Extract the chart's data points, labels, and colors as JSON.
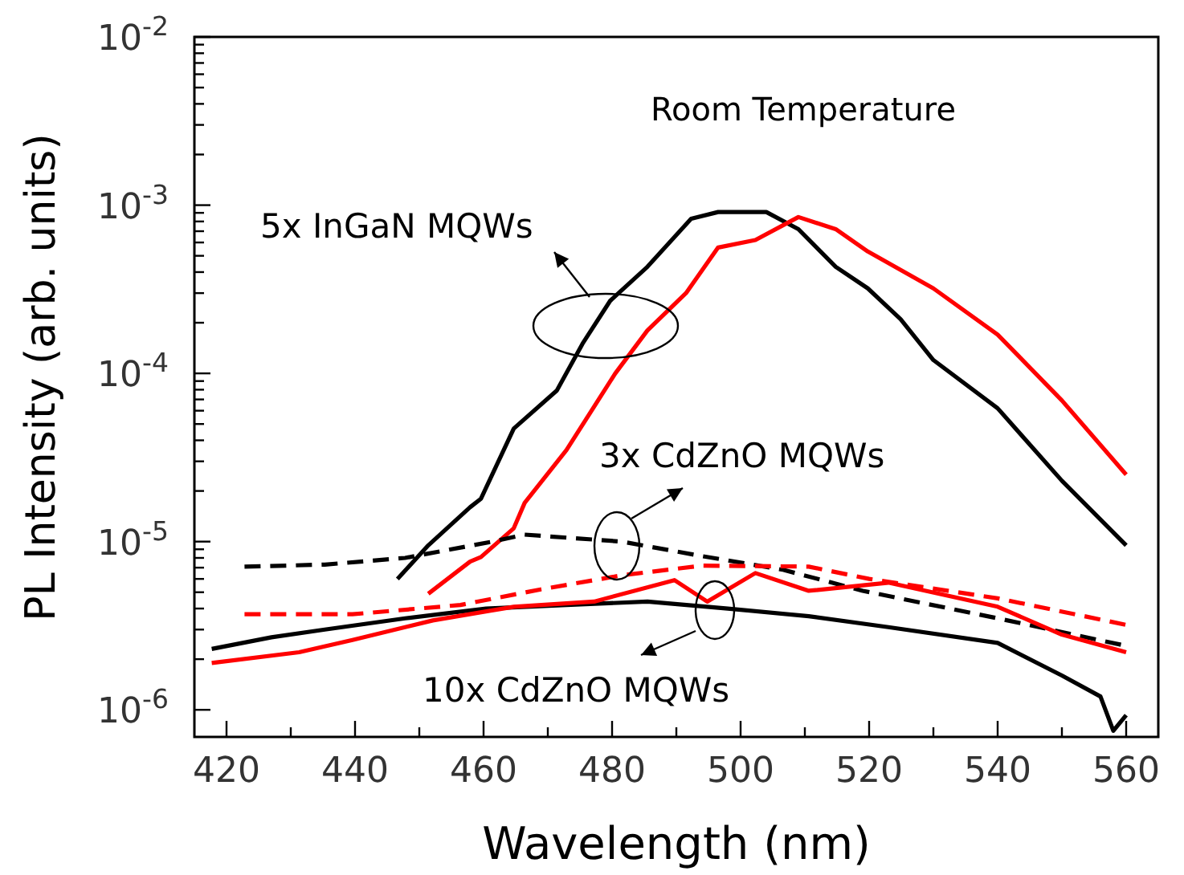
{
  "chart_data": {
    "type": "line",
    "xlabel": "Wavelength (nm)",
    "ylabel": "PL Intensity (arb. units)",
    "log": "y",
    "marker": "none",
    "xlim": [
      415,
      565
    ],
    "ylim": [
      6.9e-07,
      0.01
    ],
    "xticks": [
      {
        "value": 420,
        "label": "420"
      },
      {
        "value": 430,
        "label": null
      },
      {
        "value": 440,
        "label": "440"
      },
      {
        "value": 450,
        "label": null
      },
      {
        "value": 460,
        "label": "460"
      },
      {
        "value": 470,
        "label": null
      },
      {
        "value": 480,
        "label": "480"
      },
      {
        "value": 490,
        "label": null
      },
      {
        "value": 500,
        "label": "500"
      },
      {
        "value": 510,
        "label": null
      },
      {
        "value": 520,
        "label": "520"
      },
      {
        "value": 530,
        "label": null
      },
      {
        "value": 540,
        "label": "540"
      },
      {
        "value": 550,
        "label": null
      },
      {
        "value": 560,
        "label": "560"
      }
    ],
    "yticks": [
      {
        "value": 1e-06,
        "label": "10$^{-6}$"
      },
      {
        "value": 2e-06,
        "label": null
      },
      {
        "value": 3e-06,
        "label": null
      },
      {
        "value": 4e-06,
        "label": null
      },
      {
        "value": 5e-06,
        "label": null
      },
      {
        "value": 6e-06,
        "label": null
      },
      {
        "value": 7e-06,
        "label": null
      },
      {
        "value": 8e-06,
        "label": null
      },
      {
        "value": 9e-06,
        "label": null
      },
      {
        "value": 1e-05,
        "label": "10$^{-5}$"
      },
      {
        "value": 2e-05,
        "label": null
      },
      {
        "value": 3e-05,
        "label": null
      },
      {
        "value": 4e-05,
        "label": null
      },
      {
        "value": 5e-05,
        "label": null
      },
      {
        "value": 6e-05,
        "label": null
      },
      {
        "value": 7e-05,
        "label": null
      },
      {
        "value": 8e-05,
        "label": null
      },
      {
        "value": 9e-05,
        "label": null
      },
      {
        "value": 0.0001,
        "label": "10$^{-4}$"
      },
      {
        "value": 0.0002,
        "label": null
      },
      {
        "value": 0.0003,
        "label": null
      },
      {
        "value": 0.0004,
        "label": null
      },
      {
        "value": 0.0005,
        "label": null
      },
      {
        "value": 0.0006,
        "label": null
      },
      {
        "value": 0.0007,
        "label": null
      },
      {
        "value": 0.0008,
        "label": null
      },
      {
        "value": 0.0009,
        "label": null
      },
      {
        "value": 0.001,
        "label": "10$^{-3}$"
      },
      {
        "value": 0.002,
        "label": null
      },
      {
        "value": 0.003,
        "label": null
      },
      {
        "value": 0.004,
        "label": null
      },
      {
        "value": 0.005,
        "label": null
      },
      {
        "value": 0.006,
        "label": null
      },
      {
        "value": 0.007,
        "label": null
      },
      {
        "value": 0.008,
        "label": null
      },
      {
        "value": 0.009,
        "label": null
      },
      {
        "value": 0.01,
        "label": "10$^{-2}$"
      }
    ],
    "annotations": [
      "Room Temperature",
      "5x InGaN MQWs",
      "3x CdZnO MQWs",
      "10x CdZnO MQWs"
    ],
    "series": [
      {
        "color": "#000000",
        "line_style": "solid",
        "x": [
          446.6,
          451.4,
          457.9,
          459.6,
          464.7,
          471.4,
          475.4,
          479.7,
          485.5,
          492.3,
          496.5,
          504,
          509,
          514.8,
          519.8,
          524.9,
          530,
          540,
          550,
          560
        ],
        "values": [
          6e-06,
          9.5e-06,
          1.6e-05,
          1.8e-05,
          4.7e-05,
          7.9e-05,
          0.00015,
          0.00027,
          0.00043,
          0.00083,
          0.00091,
          0.00091,
          0.00072,
          0.00043,
          0.00032,
          0.00021,
          0.00012,
          6.2e-05,
          2.3e-05,
          9.5e-06
        ]
      },
      {
        "color": "#ff0000",
        "line_style": "solid",
        "x": [
          451.4,
          457.9,
          459.6,
          464.7,
          466.4,
          472.9,
          480.5,
          485.5,
          491.5,
          496.5,
          502.3,
          509,
          514.8,
          519.8,
          530,
          540,
          550,
          560
        ],
        "values": [
          4.9e-06,
          7.6e-06,
          8.1e-06,
          1.2e-05,
          1.7e-05,
          3.5e-05,
          0.0001,
          0.00018,
          0.0003,
          0.00056,
          0.00062,
          0.00085,
          0.00072,
          0.00053,
          0.00032,
          0.00017,
          6.9e-05,
          2.5e-05
        ]
      },
      {
        "color": "#000000",
        "line_style": "dashed",
        "x": [
          422.8,
          435.3,
          447.8,
          461.4,
          466.4,
          481.5,
          494,
          506.6,
          519,
          540,
          560
        ],
        "values": [
          7.1e-06,
          7.3e-06,
          8e-06,
          1e-05,
          1.1e-05,
          1e-05,
          8.2e-06,
          6.8e-06,
          5.1e-06,
          3.5e-06,
          2.4e-06
        ]
      },
      {
        "color": "#ff0000",
        "line_style": "dashed",
        "x": [
          422.8,
          439.6,
          456.4,
          468.9,
          481.5,
          494,
          510.6,
          520,
          540,
          560
        ],
        "values": [
          3.7e-06,
          3.7e-06,
          4.2e-06,
          5.2e-06,
          6.3e-06,
          7.2e-06,
          7.1e-06,
          6e-06,
          4.6e-06,
          3.2e-06
        ]
      },
      {
        "color": "#000000",
        "line_style": "solid",
        "x": [
          417.7,
          427,
          435.3,
          447.8,
          460.4,
          472.9,
          485.5,
          498,
          510.6,
          523,
          540,
          550,
          556,
          558,
          560
        ],
        "values": [
          2.3e-06,
          2.7e-06,
          3e-06,
          3.5e-06,
          4e-06,
          4.2e-06,
          4.4e-06,
          4e-06,
          3.6e-06,
          3.1e-06,
          2.5e-06,
          1.6e-06,
          1.2e-06,
          7.5e-07,
          9.3e-07
        ]
      },
      {
        "color": "#ff0000",
        "line_style": "solid",
        "x": [
          417.7,
          431.3,
          439.6,
          452.1,
          464.7,
          477.2,
          489.7,
          494.8,
          502.3,
          510.6,
          523,
          540,
          550,
          560
        ],
        "values": [
          1.9e-06,
          2.2e-06,
          2.6e-06,
          3.4e-06,
          4.1e-06,
          4.4e-06,
          5.9e-06,
          4.4e-06,
          6.5e-06,
          5.1e-06,
          5.7e-06,
          4.1e-06,
          2.8e-06,
          2.2e-06
        ]
      }
    ]
  }
}
